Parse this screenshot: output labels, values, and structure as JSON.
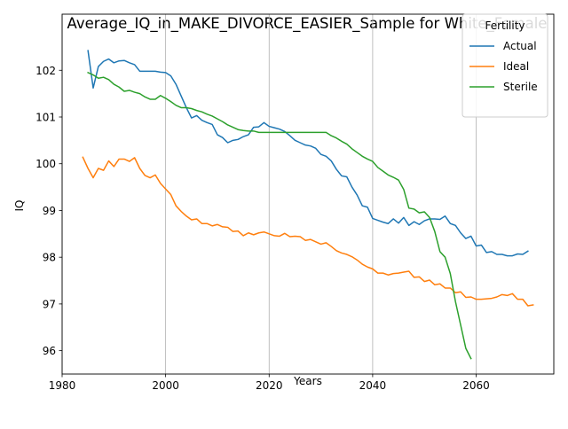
{
  "chart_data": {
    "type": "line",
    "title": "Average_IQ_in_MAKE_DIVORCE_EASIER_Sample for White_Female",
    "xlabel": "Years",
    "ylabel": "IQ",
    "xlim": [
      1980,
      2075
    ],
    "ylim": [
      95.5,
      103.2
    ],
    "xticks": [
      1980,
      2000,
      2020,
      2040,
      2060
    ],
    "yticks": [
      96,
      97,
      98,
      99,
      100,
      101,
      102
    ],
    "grid": "x-major",
    "legend": {
      "title": "Fertility",
      "placement": "top-right"
    },
    "series": [
      {
        "name": "Actual",
        "color": "#1f77b4",
        "points": [
          [
            1985,
            102.42
          ],
          [
            1986,
            101.62
          ],
          [
            1987,
            102.08
          ],
          [
            1988,
            102.19
          ],
          [
            1989,
            102.24
          ],
          [
            1990,
            102.16
          ],
          [
            1991,
            102.2
          ],
          [
            1992,
            102.21
          ],
          [
            1993,
            102.16
          ],
          [
            1994,
            102.12
          ],
          [
            1995,
            101.98
          ],
          [
            1996,
            101.98
          ],
          [
            1997,
            101.98
          ],
          [
            1998,
            101.98
          ],
          [
            1999,
            101.96
          ],
          [
            2000,
            101.95
          ],
          [
            2001,
            101.88
          ],
          [
            2002,
            101.7
          ],
          [
            2003,
            101.45
          ],
          [
            2004,
            101.2
          ],
          [
            2005,
            100.98
          ],
          [
            2006,
            101.03
          ],
          [
            2007,
            100.93
          ],
          [
            2008,
            100.88
          ],
          [
            2009,
            100.84
          ],
          [
            2010,
            100.62
          ],
          [
            2011,
            100.56
          ],
          [
            2012,
            100.45
          ],
          [
            2013,
            100.5
          ],
          [
            2014,
            100.52
          ],
          [
            2015,
            100.58
          ],
          [
            2016,
            100.62
          ],
          [
            2017,
            100.78
          ],
          [
            2018,
            100.79
          ],
          [
            2019,
            100.88
          ],
          [
            2020,
            100.8
          ],
          [
            2021,
            100.77
          ],
          [
            2022,
            100.74
          ],
          [
            2023,
            100.69
          ],
          [
            2024,
            100.6
          ],
          [
            2025,
            100.5
          ],
          [
            2026,
            100.45
          ],
          [
            2027,
            100.4
          ],
          [
            2028,
            100.38
          ],
          [
            2029,
            100.33
          ],
          [
            2030,
            100.2
          ],
          [
            2031,
            100.16
          ],
          [
            2032,
            100.06
          ],
          [
            2033,
            99.88
          ],
          [
            2034,
            99.74
          ],
          [
            2035,
            99.72
          ],
          [
            2036,
            99.5
          ],
          [
            2037,
            99.33
          ],
          [
            2038,
            99.1
          ],
          [
            2039,
            99.07
          ],
          [
            2040,
            98.83
          ],
          [
            2041,
            98.79
          ],
          [
            2042,
            98.75
          ],
          [
            2043,
            98.72
          ],
          [
            2044,
            98.82
          ],
          [
            2045,
            98.73
          ],
          [
            2046,
            98.85
          ],
          [
            2047,
            98.68
          ],
          [
            2048,
            98.76
          ],
          [
            2049,
            98.7
          ],
          [
            2050,
            98.78
          ],
          [
            2051,
            98.82
          ],
          [
            2052,
            98.82
          ],
          [
            2053,
            98.81
          ],
          [
            2054,
            98.88
          ],
          [
            2055,
            98.72
          ],
          [
            2056,
            98.68
          ],
          [
            2057,
            98.52
          ],
          [
            2058,
            98.4
          ],
          [
            2059,
            98.45
          ],
          [
            2060,
            98.24
          ],
          [
            2061,
            98.26
          ],
          [
            2062,
            98.1
          ],
          [
            2063,
            98.12
          ],
          [
            2064,
            98.06
          ],
          [
            2065,
            98.06
          ],
          [
            2066,
            98.03
          ],
          [
            2067,
            98.03
          ],
          [
            2068,
            98.07
          ],
          [
            2069,
            98.06
          ],
          [
            2070,
            98.13
          ]
        ]
      },
      {
        "name": "Ideal",
        "color": "#ff7f0e",
        "points": [
          [
            1984,
            100.14
          ],
          [
            1985,
            99.9
          ],
          [
            1986,
            99.7
          ],
          [
            1987,
            99.9
          ],
          [
            1988,
            99.86
          ],
          [
            1989,
            100.06
          ],
          [
            1990,
            99.94
          ],
          [
            1991,
            100.1
          ],
          [
            1992,
            100.1
          ],
          [
            1993,
            100.05
          ],
          [
            1994,
            100.13
          ],
          [
            1995,
            99.9
          ],
          [
            1996,
            99.75
          ],
          [
            1997,
            99.7
          ],
          [
            1998,
            99.76
          ],
          [
            1999,
            99.58
          ],
          [
            2000,
            99.46
          ],
          [
            2001,
            99.34
          ],
          [
            2002,
            99.1
          ],
          [
            2003,
            98.98
          ],
          [
            2004,
            98.88
          ],
          [
            2005,
            98.8
          ],
          [
            2006,
            98.82
          ],
          [
            2007,
            98.72
          ],
          [
            2008,
            98.72
          ],
          [
            2009,
            98.67
          ],
          [
            2010,
            98.7
          ],
          [
            2011,
            98.65
          ],
          [
            2012,
            98.64
          ],
          [
            2013,
            98.55
          ],
          [
            2014,
            98.56
          ],
          [
            2015,
            98.46
          ],
          [
            2016,
            98.52
          ],
          [
            2017,
            98.48
          ],
          [
            2018,
            98.52
          ],
          [
            2019,
            98.54
          ],
          [
            2020,
            98.5
          ],
          [
            2021,
            98.46
          ],
          [
            2022,
            98.45
          ],
          [
            2023,
            98.51
          ],
          [
            2024,
            98.44
          ],
          [
            2025,
            98.45
          ],
          [
            2026,
            98.44
          ],
          [
            2027,
            98.36
          ],
          [
            2028,
            98.38
          ],
          [
            2029,
            98.33
          ],
          [
            2030,
            98.28
          ],
          [
            2031,
            98.31
          ],
          [
            2032,
            98.23
          ],
          [
            2033,
            98.14
          ],
          [
            2034,
            98.09
          ],
          [
            2035,
            98.06
          ],
          [
            2036,
            98.01
          ],
          [
            2037,
            97.94
          ],
          [
            2038,
            97.85
          ],
          [
            2039,
            97.79
          ],
          [
            2040,
            97.75
          ],
          [
            2041,
            97.66
          ],
          [
            2042,
            97.66
          ],
          [
            2043,
            97.62
          ],
          [
            2044,
            97.65
          ],
          [
            2045,
            97.66
          ],
          [
            2046,
            97.68
          ],
          [
            2047,
            97.7
          ],
          [
            2048,
            97.57
          ],
          [
            2049,
            97.58
          ],
          [
            2050,
            97.48
          ],
          [
            2051,
            97.51
          ],
          [
            2052,
            97.41
          ],
          [
            2053,
            97.43
          ],
          [
            2054,
            97.34
          ],
          [
            2055,
            97.34
          ],
          [
            2056,
            97.24
          ],
          [
            2057,
            97.26
          ],
          [
            2058,
            97.14
          ],
          [
            2059,
            97.15
          ],
          [
            2060,
            97.1
          ],
          [
            2061,
            97.1
          ],
          [
            2062,
            97.11
          ],
          [
            2063,
            97.12
          ],
          [
            2064,
            97.15
          ],
          [
            2065,
            97.2
          ],
          [
            2066,
            97.18
          ],
          [
            2067,
            97.22
          ],
          [
            2068,
            97.1
          ],
          [
            2069,
            97.1
          ],
          [
            2070,
            96.96
          ],
          [
            2071,
            96.98
          ]
        ]
      },
      {
        "name": "Sterile",
        "color": "#2ca02c",
        "points": [
          [
            1985,
            101.95
          ],
          [
            1986,
            101.9
          ],
          [
            1987,
            101.83
          ],
          [
            1988,
            101.85
          ],
          [
            1989,
            101.8
          ],
          [
            1990,
            101.7
          ],
          [
            1991,
            101.64
          ],
          [
            1992,
            101.55
          ],
          [
            1993,
            101.57
          ],
          [
            1994,
            101.53
          ],
          [
            1995,
            101.5
          ],
          [
            1996,
            101.43
          ],
          [
            1997,
            101.38
          ],
          [
            1998,
            101.38
          ],
          [
            1999,
            101.46
          ],
          [
            2000,
            101.4
          ],
          [
            2001,
            101.33
          ],
          [
            2002,
            101.25
          ],
          [
            2003,
            101.2
          ],
          [
            2004,
            101.2
          ],
          [
            2005,
            101.18
          ],
          [
            2006,
            101.14
          ],
          [
            2007,
            101.11
          ],
          [
            2008,
            101.06
          ],
          [
            2009,
            101.02
          ],
          [
            2010,
            100.96
          ],
          [
            2011,
            100.9
          ],
          [
            2012,
            100.83
          ],
          [
            2013,
            100.78
          ],
          [
            2014,
            100.73
          ],
          [
            2015,
            100.71
          ],
          [
            2016,
            100.7
          ],
          [
            2017,
            100.7
          ],
          [
            2018,
            100.67
          ],
          [
            2019,
            100.67
          ],
          [
            2020,
            100.67
          ],
          [
            2021,
            100.67
          ],
          [
            2022,
            100.67
          ],
          [
            2023,
            100.67
          ],
          [
            2024,
            100.67
          ],
          [
            2025,
            100.67
          ],
          [
            2026,
            100.67
          ],
          [
            2027,
            100.67
          ],
          [
            2028,
            100.67
          ],
          [
            2029,
            100.67
          ],
          [
            2030,
            100.67
          ],
          [
            2031,
            100.67
          ],
          [
            2032,
            100.6
          ],
          [
            2033,
            100.55
          ],
          [
            2034,
            100.48
          ],
          [
            2035,
            100.42
          ],
          [
            2036,
            100.32
          ],
          [
            2037,
            100.24
          ],
          [
            2038,
            100.16
          ],
          [
            2039,
            100.1
          ],
          [
            2040,
            100.05
          ],
          [
            2041,
            99.92
          ],
          [
            2042,
            99.84
          ],
          [
            2043,
            99.76
          ],
          [
            2044,
            99.71
          ],
          [
            2045,
            99.65
          ],
          [
            2046,
            99.45
          ],
          [
            2047,
            99.05
          ],
          [
            2048,
            99.03
          ],
          [
            2049,
            98.95
          ],
          [
            2050,
            98.97
          ],
          [
            2051,
            98.85
          ],
          [
            2052,
            98.55
          ],
          [
            2053,
            98.12
          ],
          [
            2054,
            98.0
          ],
          [
            2055,
            97.65
          ],
          [
            2056,
            97.05
          ],
          [
            2057,
            96.55
          ],
          [
            2058,
            96.05
          ],
          [
            2059,
            95.83
          ]
        ]
      }
    ]
  }
}
